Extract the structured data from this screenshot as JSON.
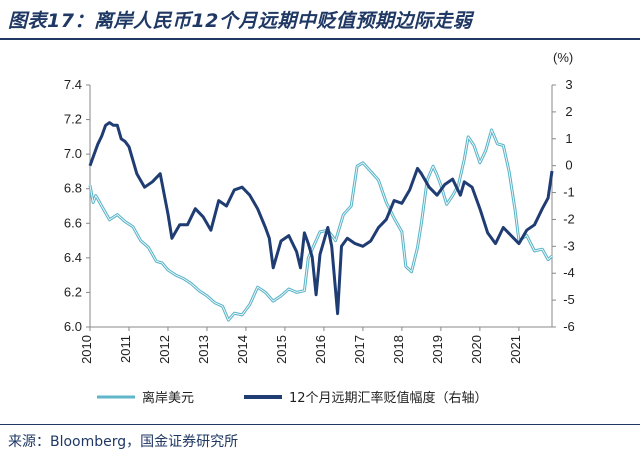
{
  "header": {
    "title": "图表17：离岸人民币12个月远期中贬值预期边际走弱"
  },
  "footer": {
    "source": "来源：Bloomberg，国金证券研究所"
  },
  "colors": {
    "title": "#1f3864",
    "cnh": "#5fb6c9",
    "forward": "#1f3c73"
  },
  "chart_data": {
    "type": "line",
    "title": "",
    "x_axis": {
      "ticks": [
        "2010",
        "2011",
        "2012",
        "2013",
        "2014",
        "2015",
        "2016",
        "2017",
        "2018",
        "2019",
        "2020",
        "2021"
      ],
      "range": [
        2010.0,
        2021.85
      ]
    },
    "y_left": {
      "range": [
        6.0,
        7.4
      ],
      "ticks": [
        "6.0",
        "6.2",
        "6.4",
        "6.6",
        "6.8",
        "7.0",
        "7.2",
        "7.4"
      ]
    },
    "y_right": {
      "range": [
        -6,
        3
      ],
      "ticks": [
        "-6",
        "-5",
        "-4",
        "-3",
        "-2",
        "-1",
        "0",
        "1",
        "2",
        "3"
      ],
      "unit_label": "(%)"
    },
    "series": [
      {
        "name": "离岸美元",
        "axis": "left",
        "x": [
          2010.0,
          2010.08,
          2010.15,
          2010.3,
          2010.5,
          2010.7,
          2010.9,
          2011.1,
          2011.3,
          2011.5,
          2011.7,
          2011.85,
          2012.0,
          2012.2,
          2012.4,
          2012.6,
          2012.8,
          2013.0,
          2013.2,
          2013.4,
          2013.55,
          2013.7,
          2013.9,
          2014.1,
          2014.3,
          2014.5,
          2014.7,
          2014.9,
          2015.1,
          2015.3,
          2015.5,
          2015.6,
          2015.7,
          2015.9,
          2016.1,
          2016.3,
          2016.5,
          2016.7,
          2016.85,
          2017.0,
          2017.2,
          2017.4,
          2017.6,
          2017.8,
          2018.0,
          2018.1,
          2018.25,
          2018.4,
          2018.5,
          2018.65,
          2018.8,
          2018.9,
          2019.0,
          2019.15,
          2019.3,
          2019.45,
          2019.6,
          2019.7,
          2019.85,
          2020.0,
          2020.15,
          2020.3,
          2020.45,
          2020.6,
          2020.75,
          2020.9,
          2021.0,
          2021.2,
          2021.4,
          2021.6,
          2021.75,
          2021.85
        ],
        "values": [
          6.82,
          6.72,
          6.76,
          6.7,
          6.62,
          6.65,
          6.61,
          6.58,
          6.5,
          6.46,
          6.38,
          6.37,
          6.33,
          6.3,
          6.28,
          6.25,
          6.21,
          6.18,
          6.14,
          6.12,
          6.04,
          6.08,
          6.07,
          6.13,
          6.23,
          6.2,
          6.15,
          6.18,
          6.22,
          6.2,
          6.21,
          6.4,
          6.45,
          6.55,
          6.56,
          6.5,
          6.65,
          6.7,
          6.93,
          6.95,
          6.9,
          6.85,
          6.72,
          6.63,
          6.55,
          6.35,
          6.32,
          6.46,
          6.6,
          6.85,
          6.93,
          6.88,
          6.82,
          6.71,
          6.76,
          6.82,
          6.97,
          7.1,
          7.05,
          6.95,
          7.02,
          7.14,
          7.06,
          7.05,
          6.9,
          6.68,
          6.5,
          6.53,
          6.44,
          6.45,
          6.39,
          6.41
        ]
      },
      {
        "name": "12个月远期汇率贬值幅度（右轴）",
        "axis": "right",
        "x": [
          2010.0,
          2010.1,
          2010.2,
          2010.3,
          2010.4,
          2010.5,
          2010.6,
          2010.7,
          2010.8,
          2010.9,
          2011.0,
          2011.2,
          2011.4,
          2011.6,
          2011.8,
          2012.0,
          2012.1,
          2012.3,
          2012.5,
          2012.7,
          2012.9,
          2013.1,
          2013.3,
          2013.5,
          2013.7,
          2013.9,
          2014.1,
          2014.3,
          2014.5,
          2014.6,
          2014.7,
          2014.9,
          2015.1,
          2015.3,
          2015.4,
          2015.5,
          2015.6,
          2015.7,
          2015.8,
          2015.9,
          2016.0,
          2016.1,
          2016.2,
          2016.35,
          2016.45,
          2016.6,
          2016.8,
          2017.0,
          2017.2,
          2017.4,
          2017.6,
          2017.8,
          2018.0,
          2018.2,
          2018.4,
          2018.5,
          2018.7,
          2018.9,
          2019.1,
          2019.3,
          2019.5,
          2019.6,
          2019.8,
          2020.0,
          2020.2,
          2020.4,
          2020.6,
          2020.8,
          2021.0,
          2021.2,
          2021.4,
          2021.6,
          2021.75,
          2021.85
        ],
        "values": [
          0.0,
          0.4,
          0.8,
          1.1,
          1.5,
          1.6,
          1.5,
          1.5,
          1.0,
          0.9,
          0.7,
          -0.3,
          -0.8,
          -0.6,
          -0.3,
          -1.8,
          -2.7,
          -2.2,
          -2.2,
          -1.6,
          -1.9,
          -2.4,
          -1.3,
          -1.5,
          -0.9,
          -0.8,
          -1.1,
          -1.6,
          -2.3,
          -2.7,
          -3.8,
          -2.8,
          -2.6,
          -3.2,
          -3.8,
          -2.5,
          -2.9,
          -3.4,
          -4.8,
          -3.3,
          -2.8,
          -2.3,
          -3.0,
          -5.5,
          -3.0,
          -2.7,
          -2.9,
          -3.0,
          -2.8,
          -2.3,
          -2.0,
          -1.3,
          -1.4,
          -0.9,
          -0.1,
          -0.3,
          -0.8,
          -1.1,
          -0.7,
          -0.5,
          -1.1,
          -0.6,
          -0.8,
          -1.6,
          -2.5,
          -2.9,
          -2.3,
          -2.6,
          -2.9,
          -2.4,
          -2.2,
          -1.6,
          -1.2,
          -0.2
        ]
      }
    ],
    "legend": {
      "position": "bottom"
    }
  }
}
